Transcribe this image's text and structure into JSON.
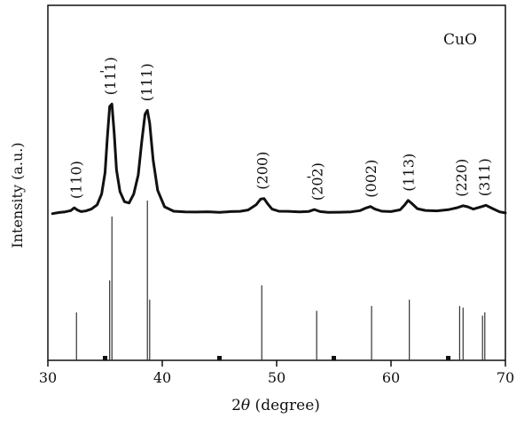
{
  "chart_data": {
    "type": "line",
    "title": "",
    "sample_label": "CuO",
    "xlabel_prefix": "2",
    "xlabel_symbol": "θ",
    "xlabel_suffix": " (degree)",
    "ylabel": "Intensity (a.u.)",
    "xlim": [
      30,
      70
    ],
    "x_ticks": [
      30,
      40,
      50,
      60,
      70
    ],
    "y_ticks_shown": false,
    "legend": "none",
    "series": [
      {
        "values_note": "",
        "x": [
          30.4,
          31.0,
          31.5,
          32.0,
          32.3,
          32.6,
          32.9,
          33.3,
          33.8,
          34.3,
          34.7,
          35.0,
          35.2,
          35.4,
          35.6,
          35.8,
          36.0,
          36.3,
          36.7,
          37.1,
          37.5,
          37.9,
          38.2,
          38.5,
          38.7,
          38.9,
          39.2,
          39.6,
          40.2,
          41.0,
          42.0,
          43.0,
          44.0,
          45.0,
          46.0,
          46.8,
          47.5,
          48.2,
          48.6,
          48.9,
          49.2,
          49.6,
          50.2,
          51.0,
          52.0,
          52.8,
          53.3,
          53.8,
          54.5,
          55.5,
          56.5,
          57.3,
          57.8,
          58.2,
          58.6,
          59.2,
          60.0,
          60.8,
          61.2,
          61.5,
          61.8,
          62.3,
          63.0,
          64.0,
          65.0,
          65.8,
          66.3,
          66.7,
          67.2,
          67.8,
          68.3,
          68.9,
          69.5,
          70.0
        ],
        "y": [
          1.6,
          2.5,
          3.0,
          4.0,
          6.2,
          4.4,
          3.2,
          3.7,
          5.2,
          8.5,
          17,
          34,
          62,
          86,
          88,
          65,
          36,
          19,
          11,
          10,
          17,
          32,
          58,
          80,
          83,
          73,
          44,
          20,
          7,
          3.5,
          3.0,
          2.9,
          3.1,
          2.6,
          3.2,
          3.4,
          4.5,
          8.5,
          13,
          13.5,
          9.5,
          5.2,
          3.5,
          3.4,
          3.0,
          3.3,
          4.8,
          3.2,
          2.6,
          2.7,
          3.0,
          4.0,
          6.0,
          7.2,
          5.2,
          3.5,
          3.2,
          4.6,
          8.5,
          12,
          9.8,
          5.5,
          4.1,
          3.8,
          4.7,
          6.3,
          7.8,
          7.0,
          5.2,
          6.8,
          8.2,
          5.5,
          3.0,
          2.2
        ]
      }
    ],
    "reflection_labels": [
      {
        "hkl": "(110)",
        "bar": false,
        "x": 32.5
      },
      {
        "hkl": "(111)",
        "bar": true,
        "x": 35.5
      },
      {
        "hkl": "(111)",
        "bar": false,
        "x": 38.7
      },
      {
        "hkl": "(200)",
        "bar": false,
        "x": 48.8
      },
      {
        "hkl": "(202)",
        "bar": true,
        "x": 53.6
      },
      {
        "hkl": "(002)",
        "bar": false,
        "x": 58.3
      },
      {
        "hkl": "(113)",
        "bar": false,
        "x": 61.6
      },
      {
        "hkl": "(220)",
        "bar": false,
        "x": 66.2
      },
      {
        "hkl": "(311)",
        "bar": false,
        "x": 68.2
      }
    ],
    "reference_pattern": {
      "x": [
        32.5,
        35.4,
        35.6,
        38.7,
        38.9,
        48.7,
        53.5,
        58.3,
        61.6,
        66.0,
        66.3,
        68.0,
        68.2
      ],
      "intensity": [
        30,
        50,
        90,
        100,
        38,
        47,
        31,
        34,
        38,
        34,
        33,
        28,
        30
      ]
    }
  }
}
